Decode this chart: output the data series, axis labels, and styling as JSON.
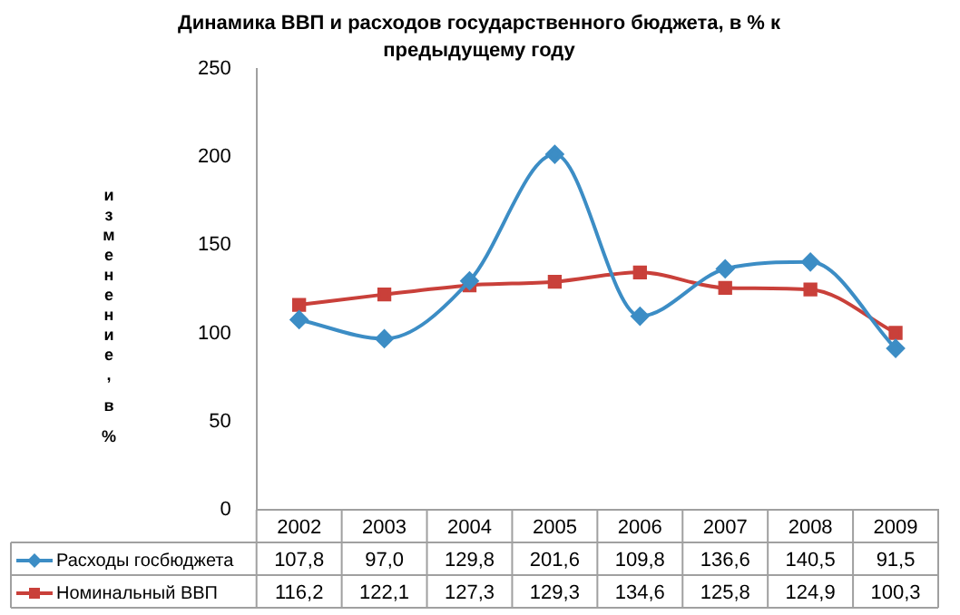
{
  "chart_data": {
    "type": "line",
    "title": "Динамика ВВП и расходов государственного бюджета, в % к предыдущему году",
    "ylabel": "изменение, в %",
    "categories": [
      "2002",
      "2003",
      "2004",
      "2005",
      "2006",
      "2007",
      "2008",
      "2009"
    ],
    "series": [
      {
        "name": "Расходы госбюджета",
        "color": "#3c8dc5",
        "marker": "diamond",
        "values": [
          107.8,
          97.0,
          129.8,
          201.6,
          109.8,
          136.6,
          140.5,
          91.5
        ],
        "value_labels": [
          "107,8",
          "97,0",
          "129,8",
          "201,6",
          "109,8",
          "136,6",
          "140,5",
          "91,5"
        ]
      },
      {
        "name": "Номинальный ВВП",
        "color": "#c9403a",
        "marker": "square",
        "values": [
          116.2,
          122.1,
          127.3,
          129.3,
          134.6,
          125.8,
          124.9,
          100.3
        ],
        "value_labels": [
          "116,2",
          "122,1",
          "127,3",
          "129,3",
          "134,6",
          "125,8",
          "124,9",
          "100,3"
        ]
      }
    ],
    "ylim": [
      0,
      250
    ],
    "yticks": [
      0,
      50,
      100,
      150,
      200,
      250
    ],
    "grid": false,
    "legend": "bottom"
  }
}
